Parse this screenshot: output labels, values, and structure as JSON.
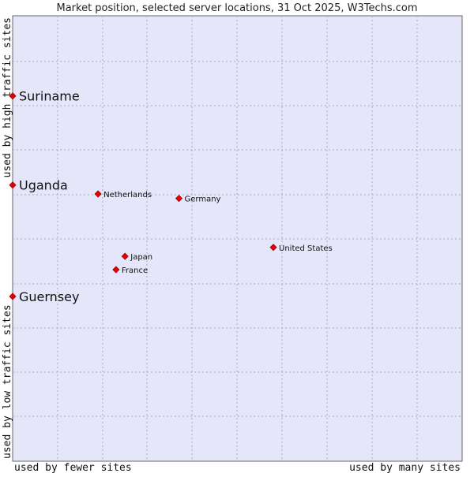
{
  "title": "Market position, selected server locations, 31 Oct 2025, W3Techs.com",
  "chart_data": {
    "type": "scatter",
    "title": "Market position, selected server locations, 31 Oct 2025, W3Techs.com",
    "xlabel_left": "used by fewer sites",
    "xlabel_right": "used by many sites",
    "ylabel_bottom": "used by low traffic sites",
    "ylabel_top": "used by high traffic sites",
    "xlim": [
      0,
      100
    ],
    "ylim": [
      0,
      100
    ],
    "grid": true,
    "points": [
      {
        "label": "Suriname",
        "x": 0,
        "y": 82,
        "size": "large"
      },
      {
        "label": "Uganda",
        "x": 0,
        "y": 62,
        "size": "large"
      },
      {
        "label": "Guernsey",
        "x": 0,
        "y": 37,
        "size": "large"
      },
      {
        "label": "Netherlands",
        "x": 19,
        "y": 60,
        "size": "small"
      },
      {
        "label": "Germany",
        "x": 37,
        "y": 59,
        "size": "small"
      },
      {
        "label": "United States",
        "x": 58,
        "y": 48,
        "size": "small"
      },
      {
        "label": "Japan",
        "x": 25,
        "y": 46,
        "size": "small"
      },
      {
        "label": "France",
        "x": 23,
        "y": 43,
        "size": "small"
      }
    ]
  }
}
